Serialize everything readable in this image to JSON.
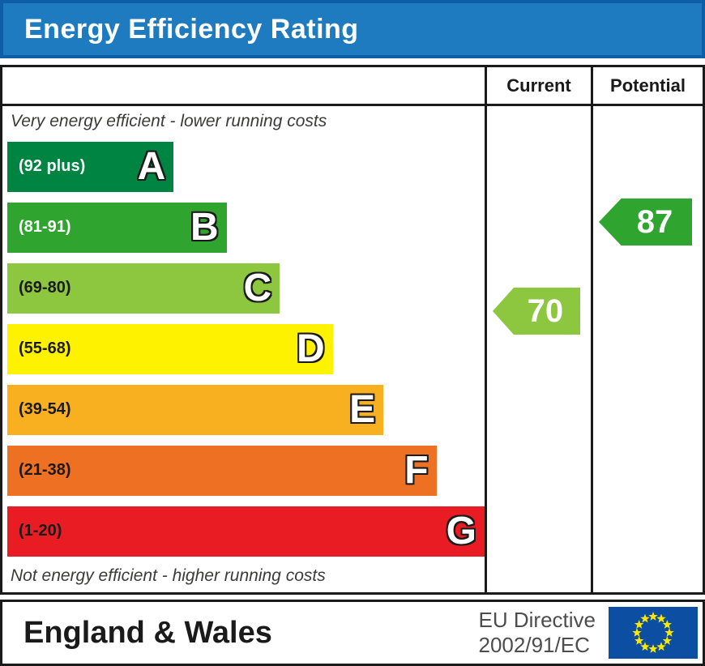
{
  "title": "Energy Efficiency Rating",
  "table": {
    "current_header": "Current",
    "potential_header": "Potential"
  },
  "captions": {
    "top": "Very energy efficient - lower running costs",
    "bottom": "Not energy efficient - higher running costs"
  },
  "chart_data": {
    "type": "bar",
    "title": "Energy Efficiency Rating",
    "legend_columns": [
      "Current",
      "Potential"
    ],
    "bands": [
      {
        "letter": "A",
        "range_label": "(92 plus)",
        "bounds": [
          92,
          100
        ],
        "color": "#008442",
        "width_pct": 34.5,
        "label_color": "#ffffff"
      },
      {
        "letter": "B",
        "range_label": "(81-91)",
        "bounds": [
          81,
          91
        ],
        "color": "#2fa52f",
        "width_pct": 45.5,
        "label_color": "#ffffff"
      },
      {
        "letter": "C",
        "range_label": "(69-80)",
        "bounds": [
          69,
          80
        ],
        "color": "#8dc63f",
        "width_pct": 56.5,
        "label_color": "#1a1a1a"
      },
      {
        "letter": "D",
        "range_label": "(55-68)",
        "bounds": [
          55,
          68
        ],
        "color": "#fff200",
        "width_pct": 67.5,
        "label_color": "#1a1a1a"
      },
      {
        "letter": "E",
        "range_label": "(39-54)",
        "bounds": [
          39,
          54
        ],
        "color": "#f8af20",
        "width_pct": 78,
        "label_color": "#1a1a1a"
      },
      {
        "letter": "F",
        "range_label": "(21-38)",
        "bounds": [
          21,
          38
        ],
        "color": "#ee7023",
        "width_pct": 89,
        "label_color": "#1a1a1a"
      },
      {
        "letter": "G",
        "range_label": "(1-20)",
        "bounds": [
          1,
          20
        ],
        "color": "#e91c24",
        "width_pct": 99.5,
        "label_color": "#1a1a1a"
      }
    ],
    "current": {
      "value": 70,
      "band": "C",
      "color": "#8dc63f"
    },
    "potential": {
      "value": 87,
      "band": "B",
      "color": "#2fa52f"
    }
  },
  "footer": {
    "region": "England & Wales",
    "directive_line1": "EU Directive",
    "directive_line2": "2002/91/EC",
    "eu_flag": {
      "background": "#0b4ea2",
      "star_color": "#ffe800",
      "star_count": 12
    }
  }
}
